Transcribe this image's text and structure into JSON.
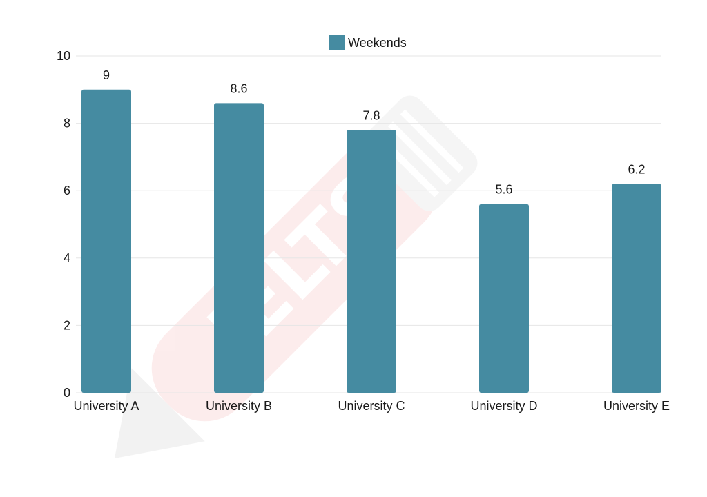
{
  "chart_data": {
    "type": "bar",
    "categories": [
      "University A",
      "University B",
      "University C",
      "University D",
      "University E"
    ],
    "series": [
      {
        "name": "Weekends",
        "values": [
          9,
          8.6,
          7.8,
          5.6,
          6.2
        ],
        "color": "#458ba1"
      }
    ],
    "ylim": [
      0,
      10
    ],
    "yticks": [
      0,
      2,
      4,
      6,
      8,
      10
    ],
    "grid": true,
    "legend_position": "top-center",
    "data_labels": [
      "9",
      "8.6",
      "7.8",
      "5.6",
      "6.2"
    ],
    "watermark_text": "IELTSMagna"
  },
  "colors": {
    "bar": "#458ba1",
    "grid": "#e6e6e6",
    "text": "#1a1a1a"
  }
}
